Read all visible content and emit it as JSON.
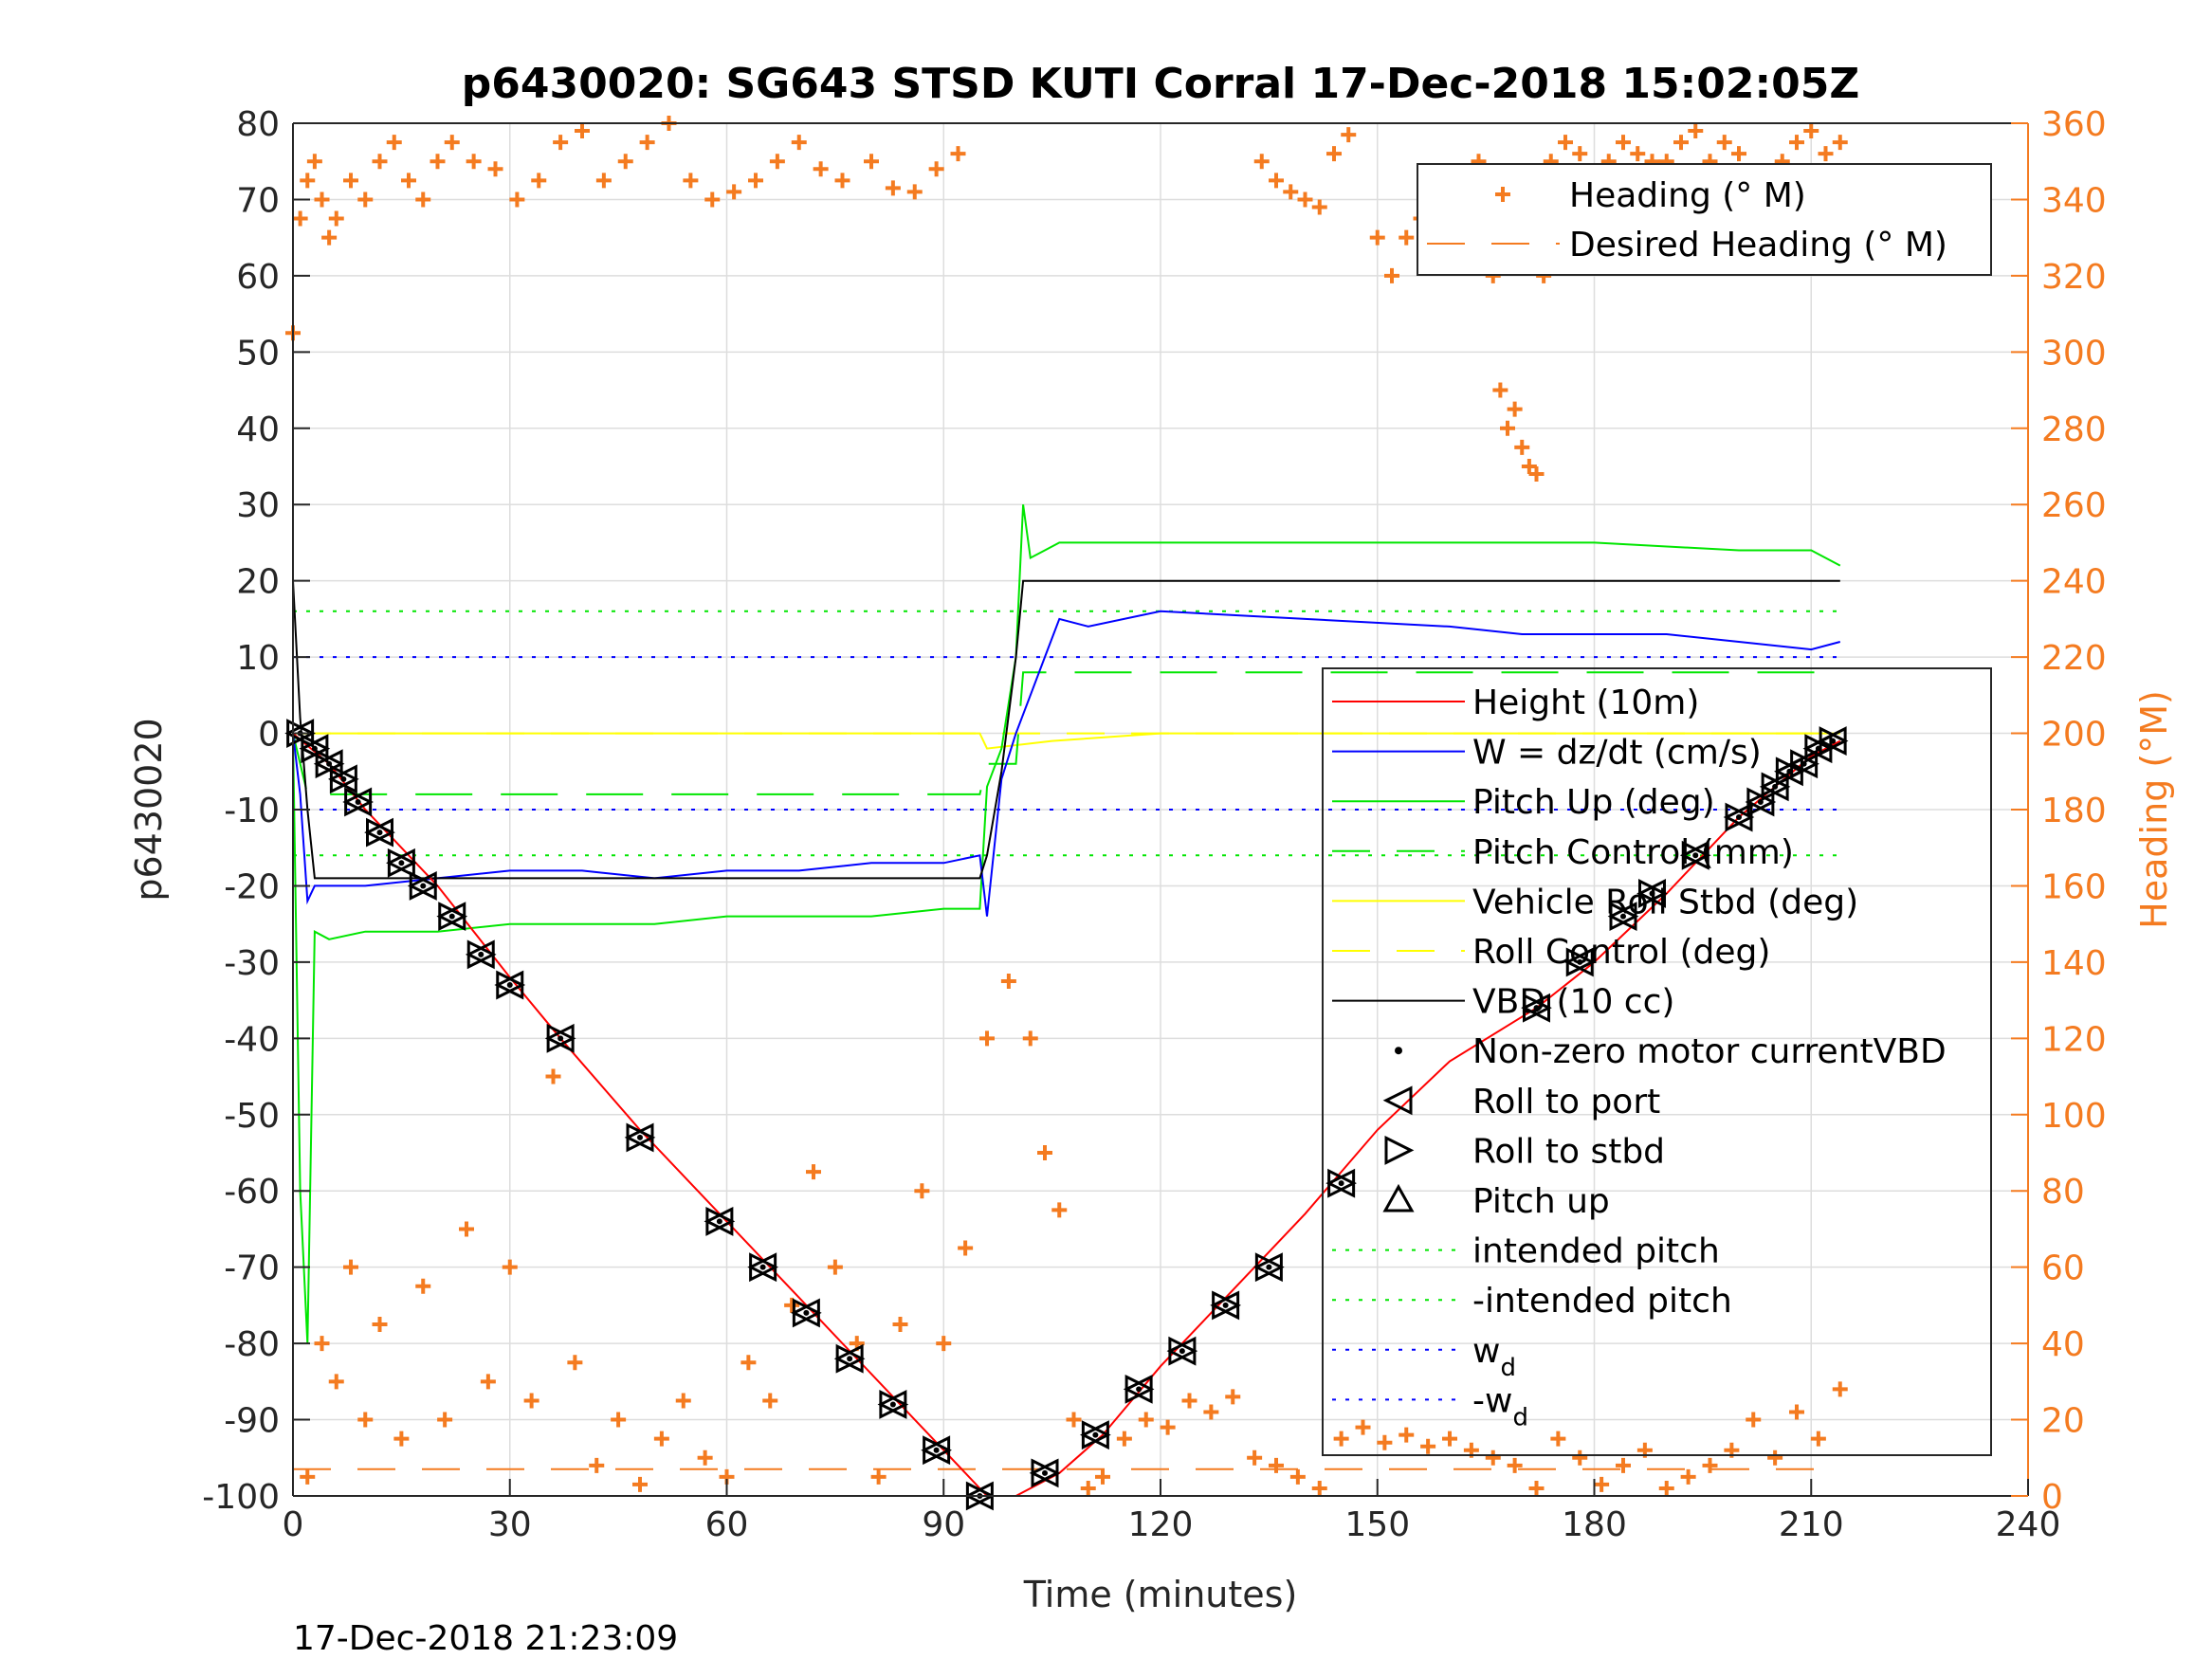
{
  "chart_data": {
    "type": "line",
    "title": "p6430020: SG643 STSD KUTI Corral 17-Dec-2018 15:02:05Z",
    "xlabel": "Time (minutes)",
    "ylabel_left": "p6430020",
    "ylabel_right": "Heading (°M)",
    "timestamp": "17-Dec-2018 21:23:09",
    "xlim": [
      0,
      240
    ],
    "ylim_left": [
      -100,
      80
    ],
    "ylim_right": [
      0,
      360
    ],
    "x_ticks": [
      "0",
      "30",
      "60",
      "90",
      "120",
      "150",
      "180",
      "210",
      "240"
    ],
    "y_ticks_left": [
      "80",
      "70",
      "60",
      "50",
      "40",
      "30",
      "20",
      "10",
      "0",
      "-10",
      "-20",
      "-30",
      "-40",
      "-50",
      "-60",
      "-70",
      "-80",
      "-90",
      "-100"
    ],
    "y_ticks_right": [
      "360",
      "340",
      "320",
      "300",
      "280",
      "260",
      "240",
      "220",
      "200",
      "180",
      "160",
      "140",
      "120",
      "100",
      "80",
      "60",
      "40",
      "20",
      "0"
    ],
    "grid": true,
    "colors": {
      "height": "#ff0000",
      "w": "#0000ff",
      "pitch": "#00e600",
      "roll": "#ffff00",
      "vbd": "#000000",
      "heading": "#f47b20",
      "markers": "#000000"
    },
    "legend_top": {
      "position": "top-right",
      "entries": [
        "Heading (° M)",
        "Desired Heading (° M)"
      ]
    },
    "legend_main": {
      "position": "right",
      "entries": [
        "Height (10m)",
        "W = dz/dt (cm/s)",
        "Pitch Up (deg)",
        "Pitch Control (mm)",
        "Vehicle Roll Stbd (deg)",
        "Roll Control (deg)",
        "VBD (10 cc)",
        "Non-zero motor currentVBD",
        "Roll to port",
        "Roll to stbd",
        "Pitch up",
        "intended pitch",
        "-intended pitch",
        "w",
        "-w"
      ],
      "subscript_d": "d"
    },
    "series": [
      {
        "name": "Height (10m)",
        "axis": "left",
        "x": [
          0,
          5,
          10,
          20,
          30,
          37,
          48,
          60,
          70,
          80,
          90,
          96,
          100,
          106,
          112,
          120,
          130,
          140,
          150,
          160,
          172,
          180,
          190,
          200,
          205,
          210,
          214
        ],
        "y": [
          0,
          -4,
          -10,
          -20,
          -32,
          -40,
          -52,
          -64,
          -74,
          -84,
          -94,
          -100,
          -100,
          -97,
          -92,
          -83,
          -73,
          -63,
          -52,
          -43,
          -36,
          -30,
          -21,
          -11,
          -7,
          -3,
          -1
        ]
      },
      {
        "name": "W = dz/dt (cm/s)",
        "axis": "left",
        "x": [
          0,
          1,
          2,
          3,
          5,
          10,
          20,
          30,
          40,
          50,
          60,
          70,
          80,
          90,
          95,
          96,
          98,
          100,
          102,
          104,
          106,
          110,
          120,
          140,
          160,
          170,
          190,
          200,
          210,
          214
        ],
        "y": [
          0,
          -8,
          -22,
          -20,
          -20,
          -20,
          -19,
          -18,
          -18,
          -19,
          -18,
          -18,
          -17,
          -17,
          -16,
          -24,
          -6,
          0,
          5,
          10,
          15,
          14,
          16,
          15,
          14,
          13,
          13,
          12,
          11,
          12
        ]
      },
      {
        "name": "Pitch Up (deg)",
        "axis": "left",
        "x": [
          0,
          1,
          2,
          3,
          5,
          10,
          20,
          30,
          40,
          50,
          60,
          70,
          80,
          90,
          95,
          96,
          98,
          100,
          101,
          102,
          104,
          106,
          110,
          120,
          140,
          160,
          180,
          200,
          210,
          214
        ],
        "y": [
          0,
          -60,
          -80,
          -26,
          -27,
          -26,
          -26,
          -25,
          -25,
          -25,
          -24,
          -24,
          -24,
          -23,
          -23,
          -7,
          -2,
          10,
          30,
          23,
          24,
          25,
          25,
          25,
          25,
          25,
          25,
          24,
          24,
          22
        ]
      },
      {
        "name": "Pitch Control (mm)",
        "axis": "left",
        "x": [
          0,
          2,
          10,
          95,
          96,
          100,
          101,
          110,
          214
        ],
        "y": [
          0,
          -8,
          -8,
          -8,
          -4,
          -4,
          8,
          8,
          8
        ]
      },
      {
        "name": "Vehicle Roll Stbd (deg)",
        "axis": "left",
        "x": [
          0,
          10,
          20,
          30,
          40,
          50,
          60,
          70,
          80,
          90,
          95,
          96,
          105,
          120,
          140,
          160,
          180,
          200,
          214
        ],
        "y": [
          0,
          0,
          0,
          0,
          0,
          0,
          0,
          0,
          0,
          0,
          0,
          -2,
          -1,
          0,
          0,
          0,
          0,
          0,
          0
        ]
      },
      {
        "name": "Roll Control (deg)",
        "axis": "left",
        "x": [
          0,
          214
        ],
        "y": [
          0,
          0
        ]
      },
      {
        "name": "VBD (10 cc)",
        "axis": "left",
        "x": [
          0,
          1,
          2,
          3,
          95,
          96,
          98,
          100,
          101,
          214
        ],
        "y": [
          20,
          2,
          -10,
          -19,
          -19,
          -16,
          -5,
          10,
          20,
          20
        ]
      },
      {
        "name": "Heading (° M)",
        "axis": "right",
        "style": "markers",
        "segments": [
          {
            "x": [
              0,
              1,
              2,
              3,
              4,
              5,
              6,
              8,
              10,
              12,
              14,
              16,
              18,
              20,
              22,
              25,
              28,
              31,
              34,
              37,
              40,
              43,
              46,
              49,
              52,
              55,
              58,
              61,
              64,
              67,
              70,
              73,
              76,
              80,
              83,
              86,
              89,
              92
            ],
            "y": [
              305,
              335,
              345,
              350,
              340,
              330,
              335,
              345,
              340,
              350,
              355,
              345,
              340,
              350,
              355,
              350,
              348,
              340,
              345,
              355,
              358,
              345,
              350,
              355,
              360,
              345,
              340,
              342,
              345,
              350,
              355,
              348,
              345,
              350,
              343,
              342,
              348,
              352
            ]
          },
          {
            "x": [
              134,
              136,
              138,
              140,
              142,
              144,
              146
            ],
            "y": [
              350,
              345,
              342,
              340,
              338,
              352,
              357
            ]
          },
          {
            "x": [
              150,
              152,
              154,
              156,
              158,
              160,
              162,
              164,
              166,
              167,
              168,
              169,
              170,
              171,
              172,
              173
            ],
            "y": [
              330,
              320,
              330,
              335,
              340,
              325,
              335,
              350,
              320,
              290,
              280,
              285,
              275,
              270,
              268,
              320
            ]
          },
          {
            "x": [
              174,
              176,
              178,
              180,
              182,
              184,
              186,
              188,
              190,
              192,
              194,
              196,
              198,
              200,
              202,
              204,
              206,
              208,
              210,
              212,
              214
            ],
            "y": [
              350,
              355,
              352,
              345,
              350,
              355,
              352,
              350,
              350,
              355,
              358,
              350,
              355,
              352,
              345,
              340,
              350,
              355,
              358,
              352,
              355
            ]
          },
          {
            "x": [
              2,
              4,
              6,
              8,
              10,
              12,
              15,
              18,
              21,
              24,
              27,
              30,
              33,
              36,
              39,
              42,
              45,
              48,
              51,
              54,
              57,
              60,
              63,
              66,
              69,
              72,
              75,
              78,
              81,
              84,
              87,
              90,
              93,
              96,
              99,
              102,
              104,
              106,
              108,
              110
            ],
            "y": [
              5,
              40,
              30,
              60,
              20,
              45,
              15,
              55,
              20,
              70,
              30,
              60,
              25,
              110,
              35,
              8,
              20,
              3,
              15,
              25,
              10,
              5,
              35,
              25,
              50,
              85,
              60,
              40,
              5,
              45,
              80,
              40,
              65,
              120,
              135,
              120,
              90,
              75,
              20,
              2
            ]
          },
          {
            "x": [
              112,
              115,
              118,
              121,
              124,
              127,
              130,
              133,
              136,
              139,
              142,
              145,
              148,
              151,
              154,
              157,
              160,
              163,
              166,
              169,
              172,
              175,
              178,
              181,
              184,
              187,
              190,
              193,
              196,
              199,
              202,
              205,
              208,
              211,
              214
            ],
            "y": [
              5,
              15,
              20,
              18,
              25,
              22,
              26,
              10,
              8,
              5,
              2,
              15,
              18,
              14,
              16,
              13,
              15,
              12,
              10,
              8,
              2,
              15,
              10,
              3,
              8,
              12,
              2,
              5,
              8,
              12,
              20,
              10,
              22,
              15,
              28
            ]
          }
        ]
      },
      {
        "name": "Desired Heading (° M)",
        "axis": "right",
        "x": [
          0,
          214
        ],
        "y": [
          7,
          7
        ]
      },
      {
        "name": "intended pitch",
        "axis": "left",
        "style": "dotted",
        "x": [
          0,
          214
        ],
        "y": [
          16,
          16
        ]
      },
      {
        "name": "-intended pitch",
        "axis": "left",
        "style": "dotted",
        "x": [
          0,
          214
        ],
        "y": [
          -16,
          -16
        ]
      },
      {
        "name": "w_d",
        "axis": "left",
        "style": "dotted",
        "x": [
          0,
          214
        ],
        "y": [
          10,
          10
        ]
      },
      {
        "name": "-w_d",
        "axis": "left",
        "style": "dotted",
        "x": [
          0,
          214
        ],
        "y": [
          -10,
          -10
        ]
      },
      {
        "name": "Roll markers",
        "axis": "left",
        "style": "markers",
        "x": [
          1,
          3,
          5,
          7,
          9,
          12,
          15,
          18,
          22,
          26,
          30,
          37,
          48,
          59,
          65,
          71,
          77,
          83,
          89,
          95,
          104,
          111,
          117,
          123,
          129,
          135,
          145,
          172,
          178,
          184,
          188,
          194,
          200,
          203,
          205,
          207,
          209,
          211,
          213
        ],
        "y": [
          0,
          -2,
          -4,
          -6,
          -9,
          -13,
          -17,
          -20,
          -24,
          -29,
          -33,
          -40,
          -53,
          -64,
          -70,
          -76,
          -82,
          -88,
          -94,
          -100,
          -97,
          -92,
          -86,
          -81,
          -75,
          -70,
          -59,
          -36,
          -30,
          -24,
          -21,
          -16,
          -11,
          -9,
          -7,
          -5,
          -4,
          -2,
          -1
        ]
      }
    ]
  }
}
